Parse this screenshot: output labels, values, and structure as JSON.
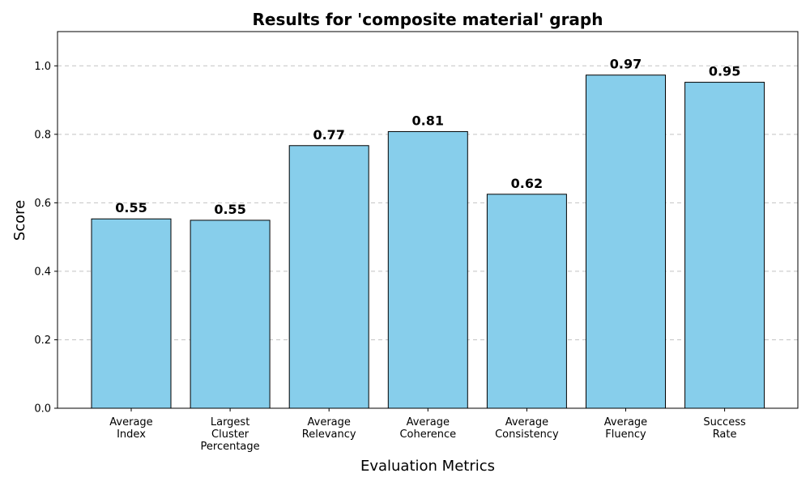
{
  "chart_data": {
    "type": "bar",
    "title": "Results for 'composite material' graph",
    "xlabel": "Evaluation Metrics",
    "ylabel": "Score",
    "ylim": [
      0,
      1.1
    ],
    "yticks": [
      "0.0",
      "0.2",
      "0.4",
      "0.6",
      "0.8",
      "1.0"
    ],
    "grid": "y-dashed",
    "categories": [
      [
        "Average",
        "Index"
      ],
      [
        "Largest",
        "Cluster",
        "Percentage"
      ],
      [
        "Average",
        "Relevancy"
      ],
      [
        "Average",
        "Coherence"
      ],
      [
        "Average",
        "Consistency"
      ],
      [
        "Average",
        "Fluency"
      ],
      [
        "Success",
        "Rate"
      ]
    ],
    "values": [
      0.553,
      0.549,
      0.767,
      0.808,
      0.625,
      0.973,
      0.952
    ],
    "value_labels": [
      "0.55",
      "0.55",
      "0.77",
      "0.81",
      "0.62",
      "0.97",
      "0.95"
    ],
    "bar_color": "#87CEEB",
    "bar_edge_color": "#000000"
  }
}
